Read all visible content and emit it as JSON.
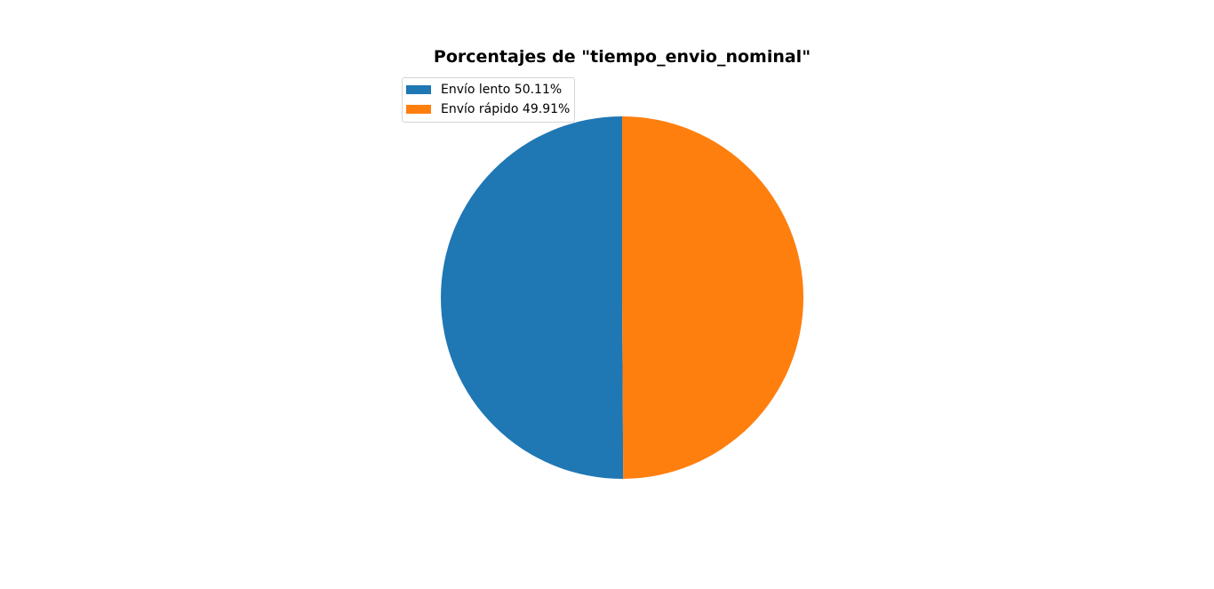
{
  "chart_data": {
    "type": "pie",
    "title": "Porcentajes de \"tiempo_envio_nominal\"",
    "labels": [
      "Envío lento",
      "Envío rápido"
    ],
    "values": [
      50.11,
      49.91
    ],
    "legend": [
      "Envío lento 50.11%",
      "Envío rápido 49.91%"
    ],
    "colors": [
      "#1f77b4",
      "#ff7f0e"
    ],
    "legend_placement": "upper-left",
    "start_angle_deg": 90,
    "direction": "counterclockwise"
  }
}
